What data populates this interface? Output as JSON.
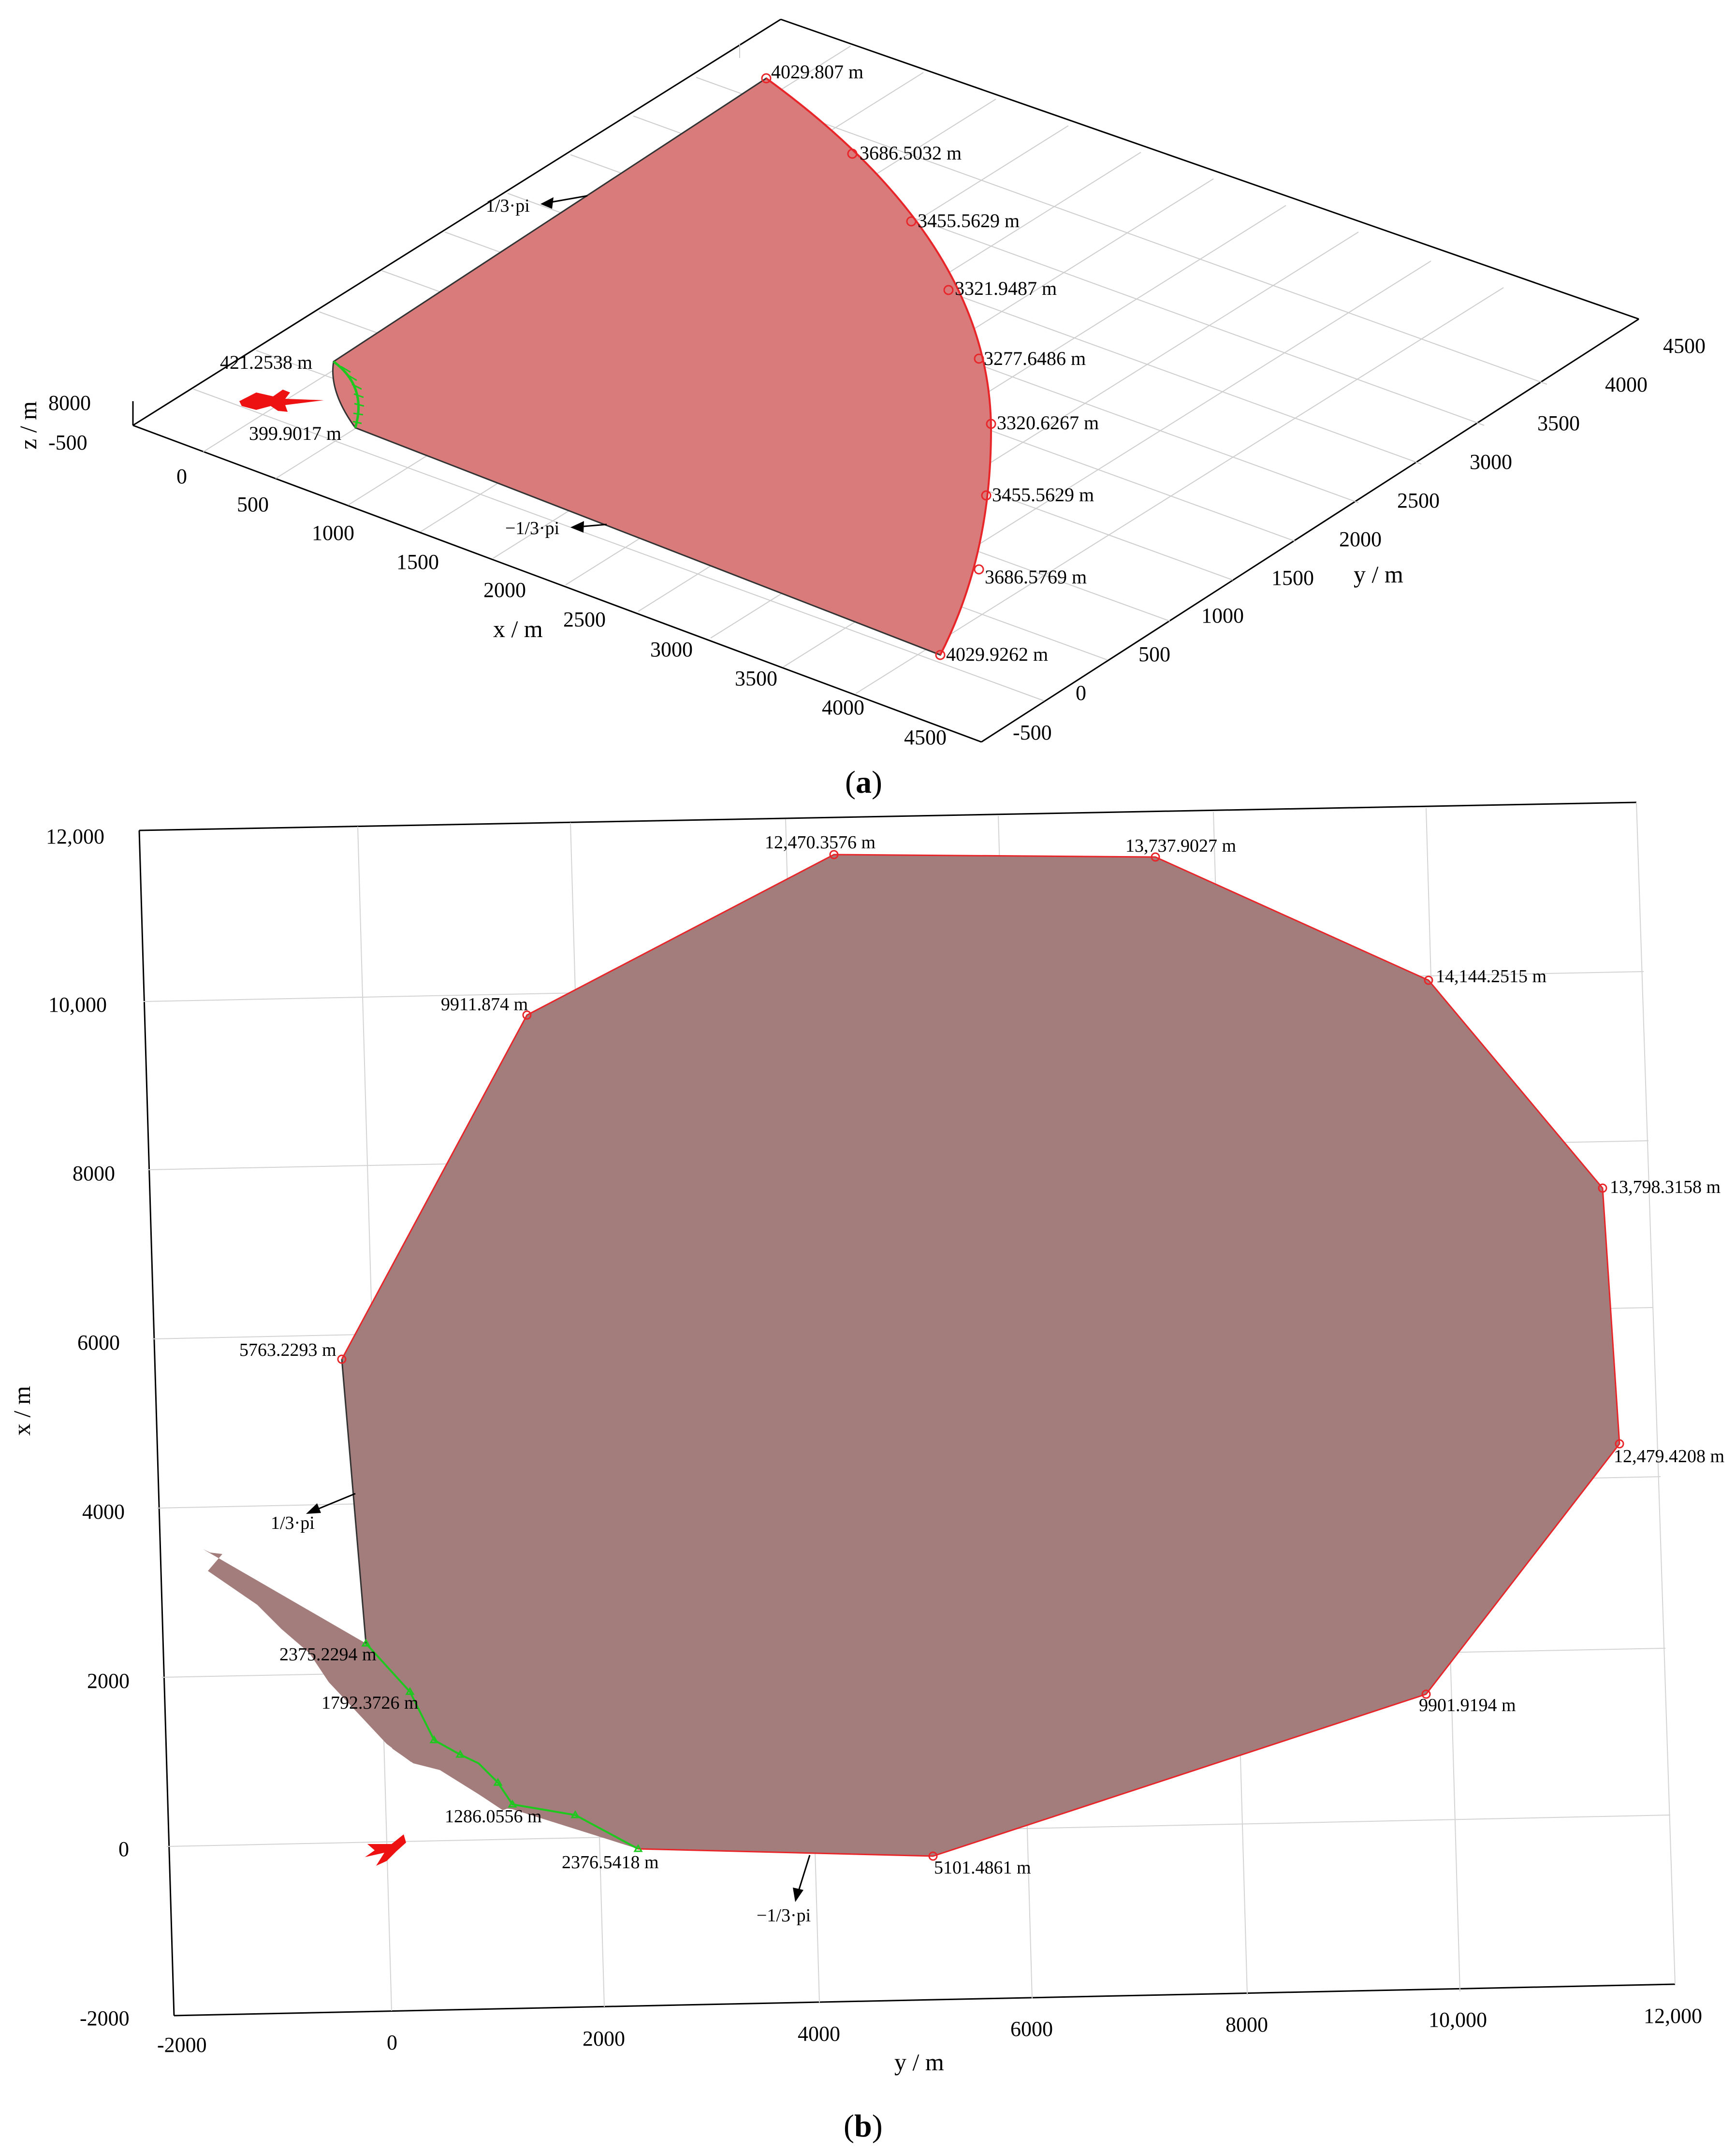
{
  "panel_a": {
    "caption": "a",
    "axes": {
      "x_label": "x / m",
      "y_label": "y / m",
      "z_label": "z / m",
      "x_ticks": [
        "0",
        "500",
        "1000",
        "1500",
        "2000",
        "2500",
        "3000",
        "3500",
        "4000",
        "4500"
      ],
      "y_ticks": [
        "-500",
        "0",
        "500",
        "1000",
        "1500",
        "2000",
        "2500",
        "3000",
        "3500",
        "4000",
        "4500"
      ],
      "z_ticks": [
        "8000",
        "-500"
      ]
    },
    "outer_labels": [
      "4029.807 m",
      "3686.5032 m",
      "3455.5629 m",
      "3321.9487 m",
      "3277.6486 m",
      "3320.6267 m",
      "3455.5629 m",
      "3686.5769 m",
      "4029.9262 m"
    ],
    "inner_labels": [
      "421.2538 m",
      "399.9017 m"
    ],
    "arrow_labels": [
      "1/3·pi",
      "−1/3·pi"
    ]
  },
  "panel_b": {
    "caption": "b",
    "axes": {
      "x_label": "x / m",
      "y_label": "y / m",
      "x_ticks": [
        "-2000",
        "0",
        "2000",
        "4000",
        "6000",
        "8000",
        "10,000",
        "12,000"
      ],
      "y_ticks": [
        "-2000",
        "0",
        "2000",
        "4000",
        "6000",
        "8000",
        "10,000",
        "12,000"
      ]
    },
    "outer_labels": [
      "12,470.3576 m",
      "13,737.9027 m",
      "14,144.2515 m",
      "13,798.3158 m",
      "12,479.4208 m",
      "9901.9194 m",
      "5101.4861 m",
      "9911.874 m",
      "5763.2293 m"
    ],
    "inner_labels": [
      "2375.2294 m",
      "1792.3726 m",
      "1286.0556 m",
      "2376.5418 m"
    ],
    "arrow_labels": [
      "1/3·pi",
      "−1/3·pi"
    ]
  },
  "colors": {
    "region_a": "#d97b7b",
    "region_b": "#a37c7c",
    "boundary": "#e8262a",
    "inner_boundary": "#1fc81f",
    "aircraft": "#ee1111"
  },
  "chart_data": [
    {
      "type": "area",
      "view": "3d-perspective",
      "xlabel": "x / m",
      "ylabel": "y / m",
      "zlabel": "z / m",
      "xlim": [
        0,
        4500
      ],
      "ylim": [
        -500,
        4500
      ],
      "zlim": [
        -500,
        8000
      ],
      "grid": true,
      "outer_boundary_distances_m": [
        4029.807,
        3686.5032,
        3455.5629,
        3321.9487,
        3277.6486,
        3320.6267,
        3455.5629,
        3686.5769,
        4029.9262
      ],
      "inner_boundary_distances_m": [
        421.2538,
        399.9017
      ],
      "angle_limits": [
        "1/3·pi",
        "−1/3·pi"
      ]
    },
    {
      "type": "area",
      "view": "top",
      "xlabel": "y / m",
      "ylabel": "x / m",
      "xlim": [
        -2000,
        12000
      ],
      "ylim": [
        -2000,
        12000
      ],
      "grid": true,
      "outer_boundary": [
        {
          "y": 4200,
          "x": 11800,
          "label": "12,470.3576 m"
        },
        {
          "y": 7100,
          "x": 11800,
          "label": "13,737.9027 m"
        },
        {
          "y": 9700,
          "x": 10300,
          "label": "14,144.2515 m"
        },
        {
          "y": 11350,
          "x": 7800,
          "label": "13,798.3158 m"
        },
        {
          "y": 11500,
          "x": 4800,
          "label": "12,479.4208 m"
        },
        {
          "y": 9650,
          "x": 1800,
          "label": "9901.9194 m"
        },
        {
          "y": 5050,
          "x": -50,
          "label": "5101.4861 m"
        },
        {
          "y": 1250,
          "x": 9900,
          "label": "9911.874 m"
        },
        {
          "y": -500,
          "x": 5800,
          "label": "5763.2293 m"
        }
      ],
      "inner_boundary": [
        {
          "y": -250,
          "x": 2400,
          "label": "2375.2294 m"
        },
        {
          "y": 150,
          "x": 1850,
          "label": "1792.3726 m"
        },
        {
          "y": 1100,
          "x": 600,
          "label": "1286.0556 m"
        },
        {
          "y": 2300,
          "x": 0,
          "label": "2376.5418 m"
        }
      ],
      "angle_limits": [
        "1/3·pi",
        "−1/3·pi"
      ]
    }
  ]
}
